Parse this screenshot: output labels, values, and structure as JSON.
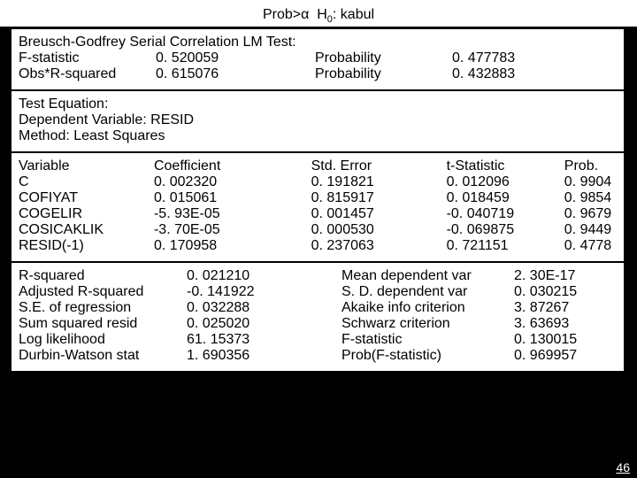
{
  "header_html": "Prob>α&nbsp;&nbsp;H<sub>0</sub>: kabul",
  "panel1": {
    "title": "Breusch-Godfrey Serial Correlation LM Test:",
    "rows": [
      {
        "l1": "F-statistic",
        "l2": "0. 520059",
        "l3": "Probability",
        "l4": "0. 477783"
      },
      {
        "l1": "Obs*R-squared",
        "l2": "0. 615076",
        "l3": "Probability",
        "l4": "0. 432883"
      }
    ]
  },
  "panel2": {
    "lines": [
      "Test Equation:",
      "Dependent Variable: RESID",
      "Method: Least Squares"
    ]
  },
  "panel3": {
    "head": {
      "c1": "Variable",
      "c2": "Coefficient",
      "c3": "Std. Error",
      "c4": "t-Statistic",
      "c5": "Prob."
    },
    "rows": [
      {
        "c1": "C",
        "c2": "0. 002320",
        "c3": "0. 191821",
        "c4": "0. 012096",
        "c5": "0. 9904"
      },
      {
        "c1": "COFIYAT",
        "c2": "0. 015061",
        "c3": "0. 815917",
        "c4": "0. 018459",
        "c5": "0. 9854"
      },
      {
        "c1": "COGELIR",
        "c2": "-5. 93E-05",
        "c3": "0. 001457",
        "c4": "-0. 040719",
        "c5": "0. 9679"
      },
      {
        "c1": "COSICAKLIK",
        "c2": "-3. 70E-05",
        "c3": "0. 000530",
        "c4": "-0. 069875",
        "c5": "0. 9449"
      },
      {
        "c1": "RESID(-1)",
        "c2": "0. 170958",
        "c3": "0. 237063",
        "c4": "0. 721151",
        "c5": "0. 4778"
      }
    ]
  },
  "panel4": {
    "rows": [
      {
        "s1": "R-squared",
        "s2": "0. 021210",
        "s3": "Mean dependent var",
        "s4": "2. 30E-17"
      },
      {
        "s1": "Adjusted R-squared",
        "s2": "-0. 141922",
        "s3": "S. D. dependent var",
        "s4": "0. 030215"
      },
      {
        "s1": "S.E. of regression",
        "s2": "0. 032288",
        "s3": "Akaike info criterion",
        "s4": "3. 87267"
      },
      {
        "s1": "Sum squared resid",
        "s2": "0. 025020",
        "s3": "Schwarz criterion",
        "s4": "3. 63693"
      },
      {
        "s1": "Log likelihood",
        "s2": "61. 15373",
        "s3": "F-statistic",
        "s4": "0. 130015"
      },
      {
        "s1": "Durbin-Watson stat",
        "s2": "1. 690356",
        "s3": "Prob(F-statistic)",
        "s4": "0. 969957"
      }
    ]
  },
  "pagenum": "46"
}
